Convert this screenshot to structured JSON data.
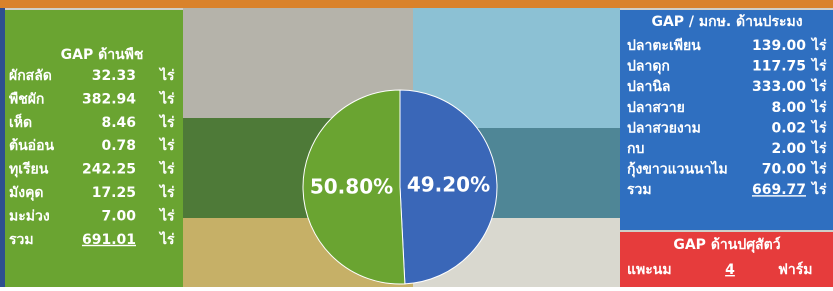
{
  "plant_panel": {
    "title": "GAP ด้านพืช",
    "rows": [
      {
        "name": "ผักสลัด",
        "value": "32.33",
        "unit": "ไร่"
      },
      {
        "name": "พืชผัก",
        "value": "382.94",
        "unit": "ไร่"
      },
      {
        "name": "เห็ด",
        "value": "8.46",
        "unit": "ไร่"
      },
      {
        "name": "ต้นอ่อน",
        "value": "0.78",
        "unit": "ไร่"
      },
      {
        "name": "ทุเรียน",
        "value": "242.25",
        "unit": "ไร่"
      },
      {
        "name": "มังคุด",
        "value": "17.25",
        "unit": "ไร่"
      },
      {
        "name": "มะม่วง",
        "value": "7.00",
        "unit": "ไร่"
      },
      {
        "name": "รวม",
        "value": "691.01",
        "unit": "ไร่"
      }
    ]
  },
  "fishery_panel": {
    "title": "GAP / มกษ. ด้านประมง",
    "rows": [
      {
        "name": "ปลาตะเพียน",
        "value": "139.00",
        "unit": "ไร่"
      },
      {
        "name": "ปลาดุก",
        "value": "117.75",
        "unit": "ไร่"
      },
      {
        "name": "ปลานิล",
        "value": "333.00",
        "unit": "ไร่"
      },
      {
        "name": "ปลาสวาย",
        "value": "8.00",
        "unit": "ไร่"
      },
      {
        "name": "ปลาสวยงาม",
        "value": "0.02",
        "unit": "ไร่"
      },
      {
        "name": "กบ",
        "value": "2.00",
        "unit": "ไร่"
      },
      {
        "name": "กุ้งขาวแวนนาไม",
        "value": "70.00",
        "unit": "ไร่"
      },
      {
        "name": "รวม",
        "value": "669.77",
        "unit": "ไร่"
      }
    ]
  },
  "livestock_panel": {
    "title": "GAP ด้านปศุสัตว์",
    "rows": [
      {
        "name": "แพะนม",
        "value": "4",
        "unit": "ฟาร์ม"
      }
    ]
  },
  "chart_data": {
    "type": "pie",
    "values": [
      49.2,
      50.8
    ],
    "value_labels": [
      "49.20%",
      "50.80%"
    ],
    "colors": [
      "#3a67b8",
      "#6aa431"
    ]
  }
}
